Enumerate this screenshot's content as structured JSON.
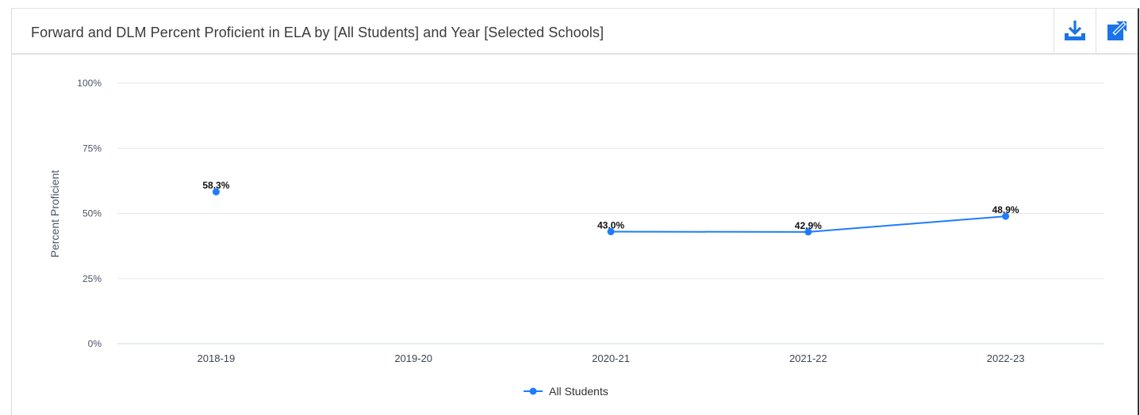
{
  "header": {
    "title": "Forward and DLM Percent Proficient in ELA by [All Students] and Year [Selected Schools]",
    "download_icon": "download-icon",
    "expand_icon": "external-link-icon"
  },
  "colors": {
    "series": "#1f7bff",
    "icon": "#1a73e8",
    "grid": "#e6e6e6"
  },
  "chart_data": {
    "type": "line",
    "title": "Forward and DLM Percent Proficient in ELA by [All Students] and Year [Selected Schools]",
    "xlabel": "",
    "ylabel": "Percent Proficient",
    "categories": [
      "2018-19",
      "2019-20",
      "2020-21",
      "2021-22",
      "2022-23"
    ],
    "ylim": [
      0,
      100
    ],
    "yticks": [
      0,
      25,
      50,
      75,
      100
    ],
    "ytick_labels": [
      "0%",
      "25%",
      "50%",
      "75%",
      "100%"
    ],
    "grid": true,
    "legend": "bottom-center",
    "series": [
      {
        "name": "All Students",
        "values": [
          58.3,
          null,
          43.0,
          42.9,
          48.9
        ],
        "labels": [
          "58.3%",
          "",
          "43.0%",
          "42.9%",
          "48.9%"
        ]
      }
    ]
  }
}
